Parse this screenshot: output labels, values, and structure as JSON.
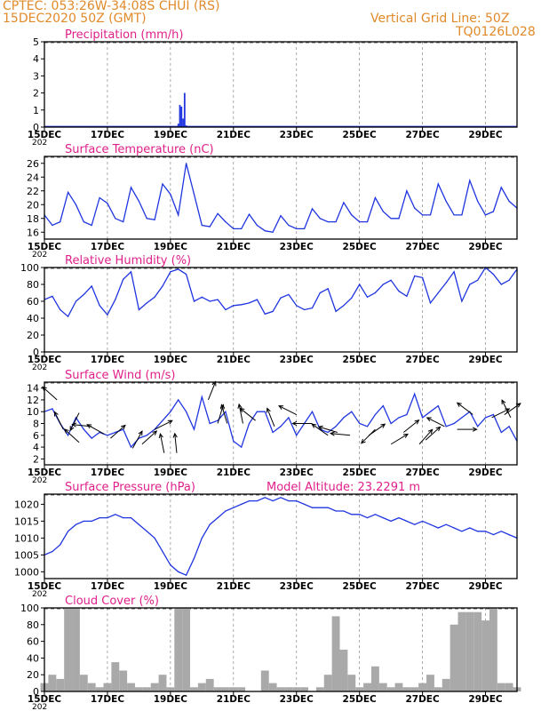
{
  "header": {
    "station": "CPTEC:   053:26W-34:08S   CHUI (RS)",
    "run": "15DEC2020 50Z (GMT)",
    "grid_note": "Vertical Grid Line: 50Z",
    "model_id": "TQ0126L028"
  },
  "colors": {
    "header": "#e08a2a",
    "title": "#e0208a",
    "line": "#1f35e0",
    "cloud": "#a9a9a9",
    "grid": "#888888"
  },
  "x_axis": {
    "tick_labels": [
      "15DEC",
      "17DEC",
      "19DEC",
      "21DEC",
      "23DEC",
      "25DEC",
      "27DEC",
      "29DEC"
    ],
    "tick_days": [
      15,
      17,
      19,
      21,
      23,
      25,
      27,
      29
    ],
    "cutoff_label": "202",
    "start_day": 15,
    "end_day": 30
  },
  "chart_data": [
    {
      "id": "precip",
      "type": "bar",
      "title": "Precipitation (mm/h)",
      "ylim": [
        0,
        5
      ],
      "yticks": [
        0,
        1,
        2,
        3,
        4,
        5
      ],
      "x": [
        19.25,
        19.3,
        19.35,
        19.4,
        19.45,
        19.5
      ],
      "values": [
        0.2,
        1.3,
        1.2,
        0.5,
        2.0,
        0.1
      ]
    },
    {
      "id": "temp",
      "type": "line",
      "title": "Surface Temperature (nC)",
      "ylim": [
        15,
        27
      ],
      "yticks": [
        16,
        18,
        20,
        22,
        24,
        26
      ],
      "x": [
        15.0,
        15.25,
        15.5,
        15.75,
        16.0,
        16.25,
        16.5,
        16.75,
        17.0,
        17.25,
        17.5,
        17.75,
        18.0,
        18.25,
        18.5,
        18.75,
        19.0,
        19.25,
        19.5,
        19.75,
        20.0,
        20.25,
        20.5,
        20.75,
        21.0,
        21.25,
        21.5,
        21.75,
        22.0,
        22.25,
        22.5,
        22.75,
        23.0,
        23.25,
        23.5,
        23.75,
        24.0,
        24.25,
        24.5,
        24.75,
        25.0,
        25.25,
        25.5,
        25.75,
        26.0,
        26.25,
        26.5,
        26.75,
        27.0,
        27.25,
        27.5,
        27.75,
        28.0,
        28.25,
        28.5,
        28.75,
        29.0,
        29.25,
        29.5,
        29.75,
        30.0
      ],
      "values": [
        18.5,
        17,
        17.5,
        21.8,
        20,
        17.5,
        17,
        21,
        20.2,
        18,
        17.5,
        22.5,
        20.5,
        18,
        17.8,
        23,
        21.5,
        18.5,
        26,
        21.5,
        17,
        16.8,
        18.7,
        17.5,
        16.5,
        16.5,
        18.6,
        17,
        16.2,
        16,
        18.4,
        17,
        16.5,
        16.5,
        19.4,
        18,
        17.5,
        17.5,
        20.3,
        18.5,
        17.5,
        17.5,
        21,
        19,
        18,
        18,
        22,
        19.5,
        18.5,
        18.5,
        23,
        20.5,
        18.5,
        18.5,
        23.5,
        20.5,
        18.5,
        19,
        22.5,
        20.5,
        19.5
      ]
    },
    {
      "id": "rh",
      "type": "line",
      "title": "Relative Humidity (%)",
      "ylim": [
        0,
        100
      ],
      "yticks": [
        0,
        20,
        40,
        60,
        80,
        100
      ],
      "x": [
        15.0,
        15.25,
        15.5,
        15.75,
        16.0,
        16.25,
        16.5,
        16.75,
        17.0,
        17.25,
        17.5,
        17.75,
        18.0,
        18.25,
        18.5,
        18.75,
        19.0,
        19.25,
        19.5,
        19.75,
        20.0,
        20.25,
        20.5,
        20.75,
        21.0,
        21.25,
        21.5,
        21.75,
        22.0,
        22.25,
        22.5,
        22.75,
        23.0,
        23.25,
        23.5,
        23.75,
        24.0,
        24.25,
        24.5,
        24.75,
        25.0,
        25.25,
        25.5,
        25.75,
        26.0,
        26.25,
        26.5,
        26.75,
        27.0,
        27.25,
        27.5,
        27.75,
        28.0,
        28.25,
        28.5,
        28.75,
        29.0,
        29.25,
        29.5,
        29.75,
        30.0
      ],
      "values": [
        62,
        66,
        50,
        42,
        60,
        68,
        78,
        55,
        44,
        62,
        86,
        95,
        50,
        58,
        65,
        78,
        95,
        98,
        92,
        60,
        65,
        60,
        62,
        50,
        55,
        56,
        58,
        62,
        45,
        48,
        64,
        68,
        55,
        50,
        52,
        70,
        75,
        48,
        55,
        64,
        80,
        65,
        70,
        80,
        85,
        72,
        66,
        90,
        88,
        58,
        70,
        82,
        95,
        60,
        80,
        85,
        100,
        92,
        80,
        85,
        98
      ]
    },
    {
      "id": "wind",
      "type": "line",
      "title": "Surface Wind (m/s)",
      "ylim": [
        1,
        15
      ],
      "yticks": [
        2,
        4,
        6,
        8,
        10,
        12,
        14
      ],
      "x": [
        15.0,
        15.25,
        15.5,
        15.75,
        16.0,
        16.25,
        16.5,
        16.75,
        17.0,
        17.25,
        17.5,
        17.75,
        18.0,
        18.25,
        18.5,
        18.75,
        19.0,
        19.25,
        19.5,
        19.75,
        20.0,
        20.25,
        20.5,
        20.75,
        21.0,
        21.25,
        21.5,
        21.75,
        22.0,
        22.25,
        22.5,
        22.75,
        23.0,
        23.25,
        23.5,
        23.75,
        24.0,
        24.25,
        24.5,
        24.75,
        25.0,
        25.25,
        25.5,
        25.75,
        26.0,
        26.25,
        26.5,
        26.75,
        27.0,
        27.25,
        27.5,
        27.75,
        28.0,
        28.25,
        28.5,
        28.75,
        29.0,
        29.25,
        29.5,
        29.75,
        30.0
      ],
      "values": [
        10,
        10.5,
        8,
        6,
        9,
        7,
        5.5,
        6.5,
        6,
        6.5,
        7,
        4,
        5.5,
        6,
        7,
        8.5,
        10,
        12,
        10,
        7,
        12.5,
        8,
        8.5,
        10,
        5,
        4,
        8,
        10,
        10,
        6.5,
        7.5,
        9,
        6,
        8,
        10,
        7,
        6.5,
        7.5,
        9,
        10,
        8,
        7.5,
        9.5,
        11,
        8,
        9,
        9.5,
        13,
        9,
        10,
        11,
        7.5,
        8,
        9,
        10,
        7.5,
        9,
        9.5,
        6.5,
        7.5,
        5
      ]
    },
    {
      "id": "pressure",
      "type": "line",
      "title": "Surface Pressure (hPa)",
      "ylim": [
        998,
        1023
      ],
      "yticks": [
        1000,
        1005,
        1010,
        1015,
        1020
      ],
      "annotation": "Model Altitude: 23.2291 m",
      "x": [
        15.0,
        15.25,
        15.5,
        15.75,
        16.0,
        16.25,
        16.5,
        16.75,
        17.0,
        17.25,
        17.5,
        17.75,
        18.0,
        18.25,
        18.5,
        18.75,
        19.0,
        19.25,
        19.5,
        19.75,
        20.0,
        20.25,
        20.5,
        20.75,
        21.0,
        21.25,
        21.5,
        21.75,
        22.0,
        22.25,
        22.5,
        22.75,
        23.0,
        23.25,
        23.5,
        23.75,
        24.0,
        24.25,
        24.5,
        24.75,
        25.0,
        25.25,
        25.5,
        25.75,
        26.0,
        26.25,
        26.5,
        26.75,
        27.0,
        27.25,
        27.5,
        27.75,
        28.0,
        28.25,
        28.5,
        28.75,
        29.0,
        29.25,
        29.5,
        29.75,
        30.0
      ],
      "values": [
        1005,
        1006,
        1008,
        1012,
        1014,
        1015,
        1015,
        1016,
        1016,
        1017,
        1016,
        1016,
        1014,
        1012,
        1010,
        1006,
        1002,
        1000,
        999,
        1004,
        1010,
        1014,
        1016,
        1018,
        1019,
        1020,
        1021,
        1021,
        1022,
        1021,
        1022,
        1021,
        1021,
        1020,
        1019,
        1019,
        1019,
        1018,
        1018,
        1017,
        1017,
        1016,
        1017,
        1016,
        1015,
        1016,
        1015,
        1014,
        1015,
        1014,
        1013,
        1014,
        1013,
        1012,
        1013,
        1012,
        1012,
        1011,
        1012,
        1011,
        1010
      ]
    },
    {
      "id": "cloud",
      "type": "area",
      "title": "Cloud Cover (%)",
      "ylim": [
        0,
        100
      ],
      "yticks": [
        0,
        20,
        40,
        60,
        80,
        100
      ],
      "x": [
        15.0,
        15.25,
        15.5,
        15.75,
        16.0,
        16.25,
        16.5,
        16.75,
        17.0,
        17.25,
        17.5,
        17.75,
        18.0,
        18.25,
        18.5,
        18.75,
        19.0,
        19.25,
        19.5,
        19.75,
        20.0,
        20.25,
        20.5,
        20.75,
        21.0,
        21.25,
        21.5,
        21.75,
        22.0,
        22.25,
        22.5,
        22.75,
        23.0,
        23.25,
        23.5,
        23.75,
        24.0,
        24.25,
        24.5,
        24.75,
        25.0,
        25.25,
        25.5,
        25.75,
        26.0,
        26.25,
        26.5,
        26.75,
        27.0,
        27.25,
        27.5,
        27.75,
        28.0,
        28.25,
        28.5,
        28.75,
        29.0,
        29.25,
        29.5,
        29.75,
        30.0
      ],
      "values": [
        10,
        20,
        15,
        100,
        100,
        20,
        10,
        5,
        10,
        35,
        25,
        10,
        5,
        5,
        10,
        20,
        5,
        100,
        100,
        5,
        10,
        15,
        5,
        5,
        5,
        5,
        0,
        0,
        25,
        10,
        5,
        5,
        5,
        5,
        0,
        5,
        20,
        90,
        50,
        20,
        5,
        10,
        30,
        10,
        5,
        10,
        5,
        5,
        10,
        20,
        5,
        15,
        80,
        95,
        95,
        95,
        85,
        100,
        10,
        10,
        5
      ]
    }
  ],
  "wind_arrows": [
    {
      "day": 15.4,
      "value": 12.0,
      "dx": -1.0,
      "dy": 0.9
    },
    {
      "day": 15.6,
      "value": 7.0,
      "dx": -0.5,
      "dy": 1.0
    },
    {
      "day": 16.1,
      "value": 4.8,
      "dx": -1.0,
      "dy": 0.9
    },
    {
      "day": 16.1,
      "value": 9.8,
      "dx": -0.5,
      "dy": -1.0
    },
    {
      "day": 16.5,
      "value": 7.5,
      "dx": -1.0,
      "dy": 0.1
    },
    {
      "day": 16.9,
      "value": 6.2,
      "dx": -0.9,
      "dy": 0.5
    },
    {
      "day": 17.1,
      "value": 5.5,
      "dx": 0.9,
      "dy": 0.8
    },
    {
      "day": 17.8,
      "value": 3.8,
      "dx": 0.5,
      "dy": 0.9
    },
    {
      "day": 18.1,
      "value": 4.5,
      "dx": 1.0,
      "dy": 0.9
    },
    {
      "day": 18.5,
      "value": 7.0,
      "dx": 1.0,
      "dy": 0.5
    },
    {
      "day": 18.8,
      "value": 3.0,
      "dx": -0.2,
      "dy": 1.0
    },
    {
      "day": 19.2,
      "value": 3.0,
      "dx": -0.1,
      "dy": 1.0
    },
    {
      "day": 20.2,
      "value": 12.0,
      "dx": 0.4,
      "dy": 1.0
    },
    {
      "day": 20.5,
      "value": 8.0,
      "dx": 0.3,
      "dy": 1.0
    },
    {
      "day": 20.8,
      "value": 8.0,
      "dx": -0.3,
      "dy": 1.0
    },
    {
      "day": 21.3,
      "value": 8.0,
      "dx": -0.2,
      "dy": 1.0
    },
    {
      "day": 21.7,
      "value": 8.5,
      "dx": -1.0,
      "dy": 0.8
    },
    {
      "day": 22.3,
      "value": 7.5,
      "dx": -0.4,
      "dy": 1.0
    },
    {
      "day": 23.0,
      "value": 9.5,
      "dx": -1.0,
      "dy": 0.5
    },
    {
      "day": 23.5,
      "value": 8.0,
      "dx": -1.0,
      "dy": 0.0
    },
    {
      "day": 24.0,
      "value": 6.0,
      "dx": -1.0,
      "dy": 0.7
    },
    {
      "day": 24.3,
      "value": 6.5,
      "dx": -1.0,
      "dy": 0.3
    },
    {
      "day": 24.7,
      "value": 6.0,
      "dx": -1.0,
      "dy": 0.1
    },
    {
      "day": 25.3,
      "value": 6.0,
      "dx": 1.0,
      "dy": 0.7
    },
    {
      "day": 25.5,
      "value": 7.0,
      "dx": -0.8,
      "dy": -0.8
    },
    {
      "day": 26.0,
      "value": 4.5,
      "dx": 1.0,
      "dy": 0.6
    },
    {
      "day": 26.4,
      "value": 6.5,
      "dx": 1.0,
      "dy": 0.8
    },
    {
      "day": 26.9,
      "value": 4.5,
      "dx": 0.8,
      "dy": 0.9
    },
    {
      "day": 27.1,
      "value": 5.2,
      "dx": 1.0,
      "dy": 0.9
    },
    {
      "day": 27.7,
      "value": 7.5,
      "dx": -1.0,
      "dy": 0.5
    },
    {
      "day": 28.1,
      "value": 7.0,
      "dx": 1.0,
      "dy": 0.0
    },
    {
      "day": 28.6,
      "value": 9.5,
      "dx": -0.8,
      "dy": 0.6
    },
    {
      "day": 29.2,
      "value": 9.0,
      "dx": 1.0,
      "dy": 0.5
    },
    {
      "day": 29.6,
      "value": 9.5,
      "dx": 1.0,
      "dy": 0.7
    },
    {
      "day": 29.8,
      "value": 9.0,
      "dx": -0.5,
      "dy": 1.0
    }
  ]
}
